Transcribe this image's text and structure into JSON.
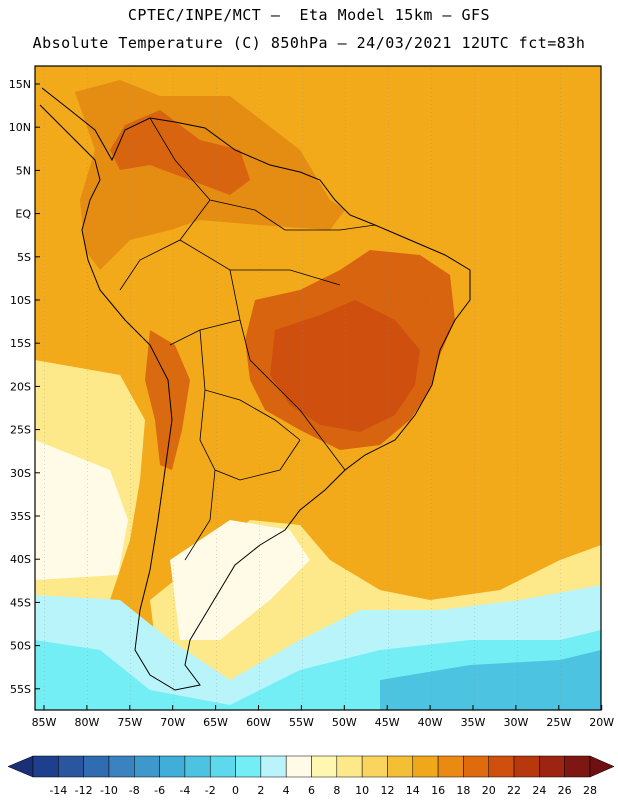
{
  "title_line1": "CPTEC/INPE/MCT —  Eta Model 15km — GFS",
  "title_line2": "Absolute Temperature (C) 850hPa — 24/03/2021 12UTC fct=83h",
  "lat_labels": [
    "15N",
    "10N",
    "5N",
    "EQ",
    "5S",
    "10S",
    "15S",
    "20S",
    "25S",
    "30S",
    "35S",
    "40S",
    "45S",
    "50S",
    "55S"
  ],
  "lon_labels": [
    "85W",
    "80W",
    "75W",
    "70W",
    "65W",
    "60W",
    "55W",
    "50W",
    "45W",
    "40W",
    "35W",
    "30W",
    "25W",
    "20W"
  ],
  "colorbar": {
    "labels": [
      "-14",
      "-12",
      "-10",
      "-8",
      "-6",
      "-4",
      "-2",
      "0",
      "2",
      "4",
      "6",
      "8",
      "10",
      "12",
      "14",
      "16",
      "18",
      "20",
      "22",
      "24",
      "26",
      "28"
    ],
    "colors": [
      "#1e3f8c",
      "#2a56a0",
      "#2f6cb2",
      "#3a82c0",
      "#3e98cc",
      "#40aed8",
      "#4cc3e0",
      "#5ed8ec",
      "#74eef5",
      "#b8f4fa",
      "#fffbe6",
      "#fff7b0",
      "#fde98a",
      "#f9d560",
      "#f3bf34",
      "#f0a81a",
      "#eb8a12",
      "#e06a0e",
      "#cf500e",
      "#b8380e",
      "#9c2410",
      "#7e1612"
    ],
    "left_end_color": "#1a2f78",
    "right_end_color": "#6e1012"
  },
  "map_colors": {
    "ocean_warm": "#f2a91a",
    "ocean_north": "#f0b22a",
    "land_warm": "#e58c12",
    "hot_core": "#cf500e",
    "hot_inner": "#d86410",
    "andes_hot": "#d96a10",
    "cool_yellow": "#fde98a",
    "pale": "#fffbe6",
    "light_cyan": "#b8f4fa",
    "cyan": "#74eef5",
    "teal": "#4cc3e0",
    "deep": "#2f6cb2"
  }
}
